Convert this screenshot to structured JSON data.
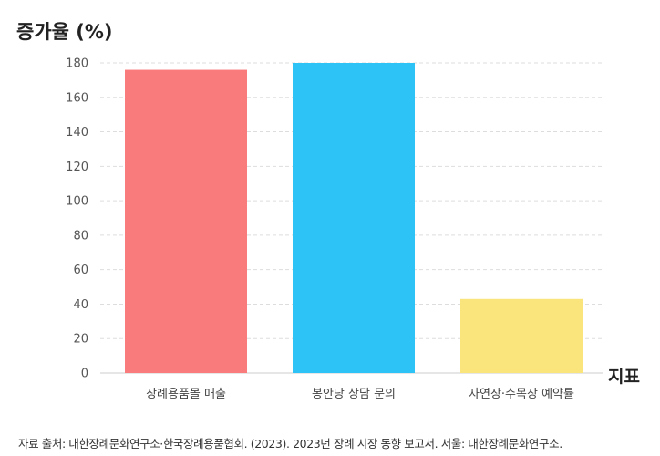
{
  "chart_data": {
    "type": "bar",
    "ylabel": "증가율 (%)",
    "xlabel": "지표",
    "categories": [
      "장례용품몰 매출",
      "봉안당 상담 문의",
      "자연장·수목장 예약률"
    ],
    "values": [
      176,
      180,
      43
    ],
    "colors": [
      "#f97b7b",
      "#2ec3f6",
      "#f9e57b"
    ],
    "yticks": [
      0,
      20,
      40,
      60,
      80,
      100,
      120,
      140,
      160,
      180
    ],
    "ylim": [
      0,
      180
    ],
    "grid": true,
    "legend": "none"
  },
  "source": "자료 출처:  대한장례문화연구소·한국장례용품협회. (2023).  2023년 장례 시장 동향 보고서. 서울: 대한장례문화연구소."
}
